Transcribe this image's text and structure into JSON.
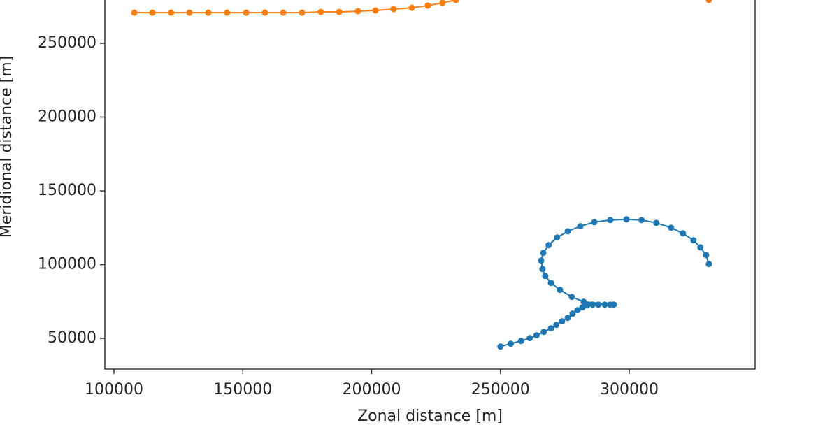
{
  "chart_data": {
    "type": "line",
    "xlabel": "Zonal distance [m]",
    "ylabel": "Meridional distance [m]",
    "xlim": [
      96470,
      348830
    ],
    "ylim": [
      29170,
      279400
    ],
    "xticks": [
      100000,
      150000,
      200000,
      250000,
      300000
    ],
    "yticks": [
      50000,
      100000,
      150000,
      200000,
      250000
    ],
    "series": [
      {
        "color": "#1f77b4",
        "x": [
          250000,
          254000,
          258000,
          261400,
          264000,
          266800,
          269600,
          271700,
          273900,
          276100,
          278000,
          279900,
          281800,
          283700,
          285800,
          288000,
          290500,
          292600,
          294000,
          282300,
          277700,
          273100,
          269600,
          267400,
          266300,
          265800,
          266600,
          268700,
          272000,
          276100,
          281000,
          286400,
          292600,
          298900,
          304800,
          310500,
          316200,
          320800,
          324900,
          327600,
          329800,
          330900
        ],
        "values": [
          44500,
          46400,
          48300,
          50200,
          52100,
          54400,
          56800,
          59200,
          61600,
          63900,
          66800,
          69100,
          71000,
          72400,
          72900,
          72900,
          72900,
          72900,
          72900,
          74800,
          78100,
          82900,
          87600,
          92300,
          97100,
          102700,
          107900,
          113200,
          118400,
          122600,
          126000,
          128800,
          130200,
          130700,
          130200,
          128300,
          125000,
          121200,
          116500,
          111700,
          106500,
          100400
        ]
      },
      {
        "color": "#ff7f0e",
        "x": [
          107900,
          114900,
          122200,
          129300,
          136600,
          143900,
          151300,
          158600,
          165700,
          173000,
          180300,
          187400,
          194700,
          201500,
          208500,
          215600,
          221800,
          227500,
          232700,
          null,
          330900
        ],
        "values": [
          270800,
          270800,
          270800,
          270800,
          270800,
          270800,
          270800,
          270800,
          270800,
          270800,
          271300,
          271300,
          271800,
          272300,
          273200,
          274100,
          275600,
          277500,
          279400,
          null,
          279400
        ]
      }
    ]
  }
}
